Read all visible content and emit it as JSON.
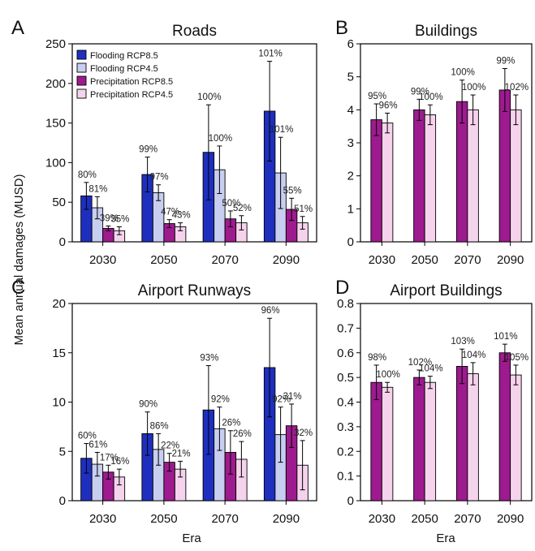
{
  "colors": {
    "flooding_rcp85": "#1e2fbf",
    "flooding_rcp45": "#c7cef0",
    "precip_rcp85": "#9e1a8f",
    "precip_rcp45": "#f6d3ec"
  },
  "legend": [
    "Flooding RCP8.5",
    "Flooding RCP4.5",
    "Precipitation RCP8.5",
    "Precipitation RCP4.5"
  ],
  "shared_ylabel": "Mean annual damages (MUSD)",
  "shared_xlabel": "Era",
  "chart_data": [
    {
      "letter": "A",
      "type": "bar",
      "title": "Roads",
      "categories": [
        "2030",
        "2050",
        "2070",
        "2090"
      ],
      "ylim": [
        0,
        250
      ],
      "yticks": [
        "0",
        "50",
        "100",
        "150",
        "200",
        "250"
      ],
      "legend_placement": "top-left",
      "series": [
        {
          "name": "Flooding RCP8.5",
          "values": [
            58,
            85,
            113,
            165
          ],
          "err": [
            17,
            22,
            60,
            63
          ],
          "labels": [
            "80%",
            "99%",
            "100%",
            "101%"
          ]
        },
        {
          "name": "Flooding RCP4.5",
          "values": [
            43,
            62,
            91,
            87
          ],
          "err": [
            14,
            10,
            30,
            45
          ],
          "labels": [
            "81%",
            "97%",
            "100%",
            "101%"
          ]
        },
        {
          "name": "Precipitation RCP8.5",
          "values": [
            17,
            23,
            29,
            41
          ],
          "err": [
            3,
            5,
            10,
            14
          ],
          "labels": [
            "39%",
            "47%",
            "50%",
            "55%"
          ]
        },
        {
          "name": "Precipitation RCP4.5",
          "values": [
            14,
            19,
            24,
            24
          ],
          "err": [
            5,
            5,
            9,
            8
          ],
          "labels": [
            "35%",
            "43%",
            "52%",
            "51%"
          ]
        }
      ]
    },
    {
      "letter": "B",
      "type": "bar",
      "title": "Buildings",
      "categories": [
        "2030",
        "2050",
        "2070",
        "2090"
      ],
      "ylim": [
        0,
        6
      ],
      "yticks": [
        "0",
        "1",
        "2",
        "3",
        "4",
        "5",
        "6"
      ],
      "series": [
        {
          "name": "Precipitation RCP8.5",
          "values": [
            3.7,
            4.0,
            4.25,
            4.6
          ],
          "err": [
            0.48,
            0.32,
            0.65,
            0.65
          ],
          "labels": [
            "95%",
            "99%",
            "100%",
            "99%"
          ]
        },
        {
          "name": "Precipitation RCP4.5",
          "values": [
            3.6,
            3.85,
            4.0,
            4.0
          ],
          "err": [
            0.3,
            0.3,
            0.45,
            0.45
          ],
          "labels": [
            "96%",
            "100%",
            "100%",
            "102%"
          ]
        }
      ]
    },
    {
      "letter": "C",
      "type": "bar",
      "title": "Airport Runways",
      "categories": [
        "2030",
        "2050",
        "2070",
        "2090"
      ],
      "ylim": [
        0,
        20
      ],
      "yticks": [
        "0",
        "5",
        "10",
        "15",
        "20"
      ],
      "series": [
        {
          "name": "Flooding RCP8.5",
          "values": [
            4.3,
            6.8,
            9.2,
            13.5
          ],
          "err": [
            1.5,
            2.2,
            4.5,
            5.0
          ],
          "labels": [
            "60%",
            "90%",
            "93%",
            "96%"
          ]
        },
        {
          "name": "Flooding RCP4.5",
          "values": [
            3.7,
            5.2,
            7.3,
            6.7
          ],
          "err": [
            1.2,
            1.6,
            2.2,
            2.8
          ],
          "labels": [
            "61%",
            "86%",
            "92%",
            "92%"
          ]
        },
        {
          "name": "Precipitation RCP8.5",
          "values": [
            2.9,
            3.9,
            4.9,
            7.6
          ],
          "err": [
            0.7,
            0.9,
            2.2,
            2.2
          ],
          "labels": [
            "17%",
            "22%",
            "26%",
            "31%"
          ]
        },
        {
          "name": "Precipitation RCP4.5",
          "values": [
            2.4,
            3.2,
            4.2,
            3.6
          ],
          "err": [
            0.8,
            0.8,
            1.8,
            2.5
          ],
          "labels": [
            "16%",
            "21%",
            "26%",
            "32%"
          ]
        }
      ]
    },
    {
      "letter": "D",
      "type": "bar",
      "title": "Airport Buildings",
      "categories": [
        "2030",
        "2050",
        "2070",
        "2090"
      ],
      "ylim": [
        0,
        0.8
      ],
      "yticks": [
        "0",
        "0.1",
        "0.2",
        "0.3",
        "0.4",
        "0.5",
        "0.6",
        "0.7",
        "0.8"
      ],
      "series": [
        {
          "name": "Precipitation RCP8.5",
          "values": [
            0.48,
            0.5,
            0.545,
            0.6
          ],
          "err": [
            0.07,
            0.03,
            0.07,
            0.035
          ],
          "labels": [
            "98%",
            "102%",
            "103%",
            "101%"
          ]
        },
        {
          "name": "Precipitation RCP4.5",
          "values": [
            0.46,
            0.48,
            0.515,
            0.51
          ],
          "err": [
            0.02,
            0.025,
            0.045,
            0.04
          ],
          "labels": [
            "100%",
            "104%",
            "104%",
            "105%"
          ]
        }
      ]
    }
  ]
}
